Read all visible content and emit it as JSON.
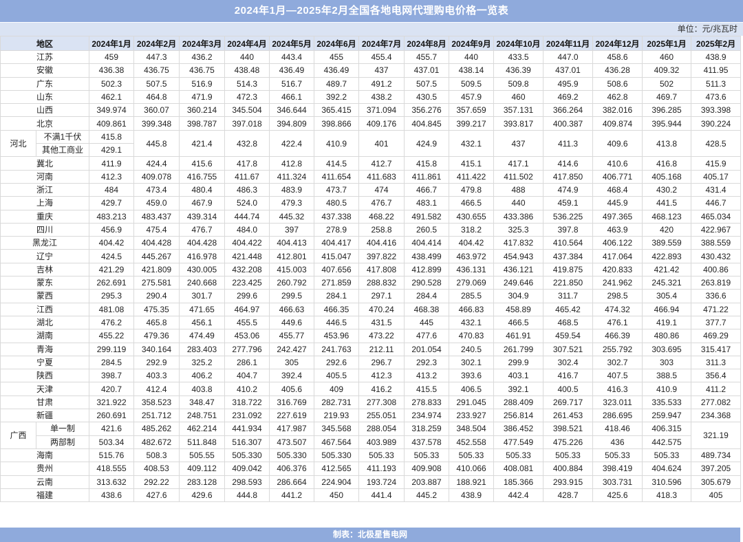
{
  "title": "2024年1月—2025年2月全国各地电网代理购电价格一览表",
  "unit": "单位：元/兆瓦时",
  "footer": "制表：北极星售电网",
  "watermark": "北极星售电网",
  "colors": {
    "title_bar": "#8faadc",
    "header_bg": "#dae3f3",
    "grid": "#d9d9d9"
  },
  "region_header": "地区",
  "months": [
    "2024年1月",
    "2024年2月",
    "2024年3月",
    "2024年4月",
    "2024年5月",
    "2024年6月",
    "2024年7月",
    "2024年8月",
    "2024年9月",
    "2024年10月",
    "2024年11月",
    "2024年12月",
    "2025年1月",
    "2025年2月"
  ],
  "rows": [
    {
      "region": "江苏",
      "values": [
        "459",
        "447.3",
        "436.2",
        "440",
        "443.4",
        "455",
        "455.4",
        "455.7",
        "440",
        "433.5",
        "447.0",
        "458.6",
        "460",
        "438.9"
      ]
    },
    {
      "region": "安徽",
      "values": [
        "436.38",
        "436.75",
        "436.75",
        "438.48",
        "436.49",
        "436.49",
        "437",
        "437.01",
        "438.14",
        "436.39",
        "437.01",
        "436.28",
        "409.32",
        "411.95"
      ]
    },
    {
      "region": "广东",
      "values": [
        "502.3",
        "507.5",
        "516.9",
        "514.3",
        "516.7",
        "489.7",
        "491.2",
        "507.5",
        "509.5",
        "509.8",
        "495.9",
        "508.6",
        "502",
        "511.3"
      ]
    },
    {
      "region": "山东",
      "values": [
        "462.1",
        "464.8",
        "471.9",
        "472.3",
        "466.1",
        "392.2",
        "438.2",
        "430.5",
        "457.9",
        "460",
        "469.2",
        "462.8",
        "469.7",
        "473.6"
      ]
    },
    {
      "region": "山西",
      "values": [
        "349.974",
        "360.07",
        "360.214",
        "345.504",
        "346.644",
        "365.415",
        "371.094",
        "356.276",
        "357.659",
        "357.131",
        "366.264",
        "382.016",
        "396.285",
        "393.398"
      ]
    },
    {
      "region": "北京",
      "values": [
        "409.861",
        "399.348",
        "398.787",
        "397.018",
        "394.809",
        "398.866",
        "409.176",
        "404.845",
        "399.217",
        "393.817",
        "400.387",
        "409.874",
        "395.944",
        "390.224"
      ]
    },
    {
      "group": "河北",
      "subrows": [
        {
          "label": "不满1千伏",
          "values": [
            "415.8",
            null,
            null,
            null,
            null,
            null,
            null,
            null,
            null,
            null,
            null,
            null,
            null,
            null
          ]
        },
        {
          "label": "其他工商业",
          "values": [
            "429.1",
            null,
            null,
            null,
            null,
            null,
            null,
            null,
            null,
            null,
            null,
            null,
            null,
            null
          ]
        }
      ],
      "merged": [
        null,
        "445.8",
        "421.4",
        "432.8",
        "422.4",
        "410.9",
        "401",
        "424.9",
        "432.1",
        "437",
        "411.3",
        "409.6",
        "413.8",
        "428.5"
      ]
    },
    {
      "region": "冀北",
      "values": [
        "411.9",
        "424.4",
        "415.6",
        "417.8",
        "412.8",
        "414.5",
        "412.7",
        "415.8",
        "415.1",
        "417.1",
        "414.6",
        "410.6",
        "416.8",
        "415.9"
      ]
    },
    {
      "region": "河南",
      "values": [
        "412.3",
        "409.078",
        "416.755",
        "411.67",
        "411.324",
        "411.654",
        "411.683",
        "411.861",
        "411.422",
        "411.502",
        "417.850",
        "406.771",
        "405.168",
        "405.17"
      ]
    },
    {
      "region": "浙江",
      "values": [
        "484",
        "473.4",
        "480.4",
        "486.3",
        "483.9",
        "473.7",
        "474",
        "466.7",
        "479.8",
        "488",
        "474.9",
        "468.4",
        "430.2",
        "431.4"
      ]
    },
    {
      "region": "上海",
      "values": [
        "429.7",
        "459.0",
        "467.9",
        "524.0",
        "479.3",
        "480.5",
        "476.7",
        "483.1",
        "466.5",
        "440",
        "459.1",
        "445.9",
        "441.5",
        "446.7"
      ]
    },
    {
      "region": "重庆",
      "values": [
        "483.213",
        "483.437",
        "439.314",
        "444.74",
        "445.32",
        "437.338",
        "468.22",
        "491.582",
        "430.655",
        "433.386",
        "536.225",
        "497.365",
        "468.123",
        "465.034"
      ]
    },
    {
      "region": "四川",
      "values": [
        "456.9",
        "475.4",
        "476.7",
        "484.0",
        "397",
        "278.9",
        "258.8",
        "260.5",
        "318.2",
        "325.3",
        "397.8",
        "463.9",
        "420",
        "422.967"
      ]
    },
    {
      "region": "黑龙江",
      "values": [
        "404.42",
        "404.428",
        "404.428",
        "404.422",
        "404.413",
        "404.417",
        "404.416",
        "404.414",
        "404.42",
        "417.832",
        "410.564",
        "406.122",
        "389.559",
        "388.559"
      ]
    },
    {
      "region": "辽宁",
      "values": [
        "424.5",
        "445.267",
        "416.978",
        "421.448",
        "412.801",
        "415.047",
        "397.822",
        "438.499",
        "463.972",
        "454.943",
        "437.384",
        "417.064",
        "422.893",
        "430.432"
      ]
    },
    {
      "region": "吉林",
      "values": [
        "421.29",
        "421.809",
        "430.005",
        "432.208",
        "415.003",
        "407.656",
        "417.808",
        "412.899",
        "436.131",
        "436.121",
        "419.875",
        "420.833",
        "421.42",
        "400.86"
      ]
    },
    {
      "region": "蒙东",
      "values": [
        "262.691",
        "275.581",
        "240.668",
        "223.425",
        "260.792",
        "271.859",
        "288.832",
        "290.528",
        "279.069",
        "249.646",
        "221.850",
        "241.962",
        "245.321",
        "263.819"
      ]
    },
    {
      "region": "蒙西",
      "values": [
        "295.3",
        "290.4",
        "301.7",
        "299.6",
        "299.5",
        "284.1",
        "297.1",
        "284.4",
        "285.5",
        "304.9",
        "311.7",
        "298.5",
        "305.4",
        "336.6"
      ]
    },
    {
      "region": "江西",
      "values": [
        "481.08",
        "475.35",
        "471.65",
        "464.97",
        "466.63",
        "466.35",
        "470.24",
        "468.38",
        "466.83",
        "458.89",
        "465.42",
        "474.32",
        "466.94",
        "471.22"
      ]
    },
    {
      "region": "湖北",
      "values": [
        "476.2",
        "465.8",
        "456.1",
        "455.5",
        "449.6",
        "446.5",
        "431.5",
        "445",
        "432.1",
        "466.5",
        "468.5",
        "476.1",
        "419.1",
        "377.7"
      ]
    },
    {
      "region": "湖南",
      "values": [
        "455.22",
        "479.36",
        "474.49",
        "453.06",
        "455.77",
        "453.96",
        "473.22",
        "477.6",
        "470.83",
        "461.91",
        "459.54",
        "466.39",
        "480.86",
        "469.29"
      ]
    },
    {
      "region": "青海",
      "values": [
        "299.119",
        "340.164",
        "283.403",
        "277.796",
        "242.427",
        "241.763",
        "212.11",
        "201.054",
        "240.5",
        "261.799",
        "307.521",
        "255.792",
        "303.695",
        "315.417"
      ]
    },
    {
      "region": "宁夏",
      "values": [
        "284.5",
        "292.9",
        "325.2",
        "286.1",
        "305",
        "292.6",
        "296.7",
        "292.3",
        "302.1",
        "299.9",
        "302.4",
        "302.7",
        "303",
        "311.3"
      ]
    },
    {
      "region": "陕西",
      "values": [
        "398.7",
        "403.3",
        "406.2",
        "404.7",
        "392.4",
        "405.5",
        "412.3",
        "413.2",
        "393.6",
        "403.1",
        "416.7",
        "407.5",
        "388.5",
        "356.4"
      ]
    },
    {
      "region": "天津",
      "values": [
        "420.7",
        "412.4",
        "403.8",
        "410.2",
        "405.6",
        "409",
        "416.2",
        "415.5",
        "406.5",
        "392.1",
        "400.5",
        "416.3",
        "410.9",
        "411.2"
      ]
    },
    {
      "region": "甘肃",
      "values": [
        "321.922",
        "358.523",
        "348.47",
        "318.722",
        "316.769",
        "282.731",
        "277.308",
        "278.833",
        "291.045",
        "288.409",
        "269.717",
        "323.011",
        "335.533",
        "277.082"
      ]
    },
    {
      "region": "新疆",
      "values": [
        "260.691",
        "251.712",
        "248.751",
        "231.092",
        "227.619",
        "219.93",
        "255.051",
        "234.974",
        "233.927",
        "256.814",
        "261.453",
        "286.695",
        "259.947",
        "234.368"
      ]
    },
    {
      "group": "广西",
      "subrows": [
        {
          "label": "单一制",
          "values": [
            "421.6",
            "485.262",
            "462.214",
            "441.934",
            "417.987",
            "345.568",
            "288.054",
            "318.259",
            "348.504",
            "386.452",
            "398.521",
            "418.46",
            "406.315",
            null
          ]
        },
        {
          "label": "两部制",
          "values": [
            "503.34",
            "482.672",
            "511.848",
            "516.307",
            "473.507",
            "467.564",
            "403.989",
            "437.578",
            "452.558",
            "477.549",
            "475.226",
            "436",
            "442.575",
            null
          ]
        }
      ],
      "merged": [
        null,
        null,
        null,
        null,
        null,
        null,
        null,
        null,
        null,
        null,
        null,
        null,
        null,
        "321.19"
      ]
    },
    {
      "region": "海南",
      "values": [
        "515.76",
        "508.3",
        "505.55",
        "505.330",
        "505.330",
        "505.330",
        "505.33",
        "505.33",
        "505.33",
        "505.33",
        "505.33",
        "505.33",
        "505.33",
        "489.734"
      ]
    },
    {
      "region": "贵州",
      "values": [
        "418.555",
        "408.53",
        "409.112",
        "409.042",
        "406.376",
        "412.565",
        "411.193",
        "409.908",
        "410.066",
        "408.081",
        "400.884",
        "398.419",
        "404.624",
        "397.205"
      ]
    },
    {
      "region": "云南",
      "values": [
        "313.632",
        "292.22",
        "283.128",
        "298.593",
        "286.664",
        "224.904",
        "193.724",
        "203.887",
        "188.921",
        "185.366",
        "293.915",
        "303.731",
        "310.596",
        "305.679"
      ]
    },
    {
      "region": "福建",
      "values": [
        "438.6",
        "427.6",
        "429.6",
        "444.8",
        "441.2",
        "450",
        "441.4",
        "445.2",
        "438.9",
        "442.4",
        "428.7",
        "425.6",
        "418.3",
        "405"
      ]
    }
  ]
}
